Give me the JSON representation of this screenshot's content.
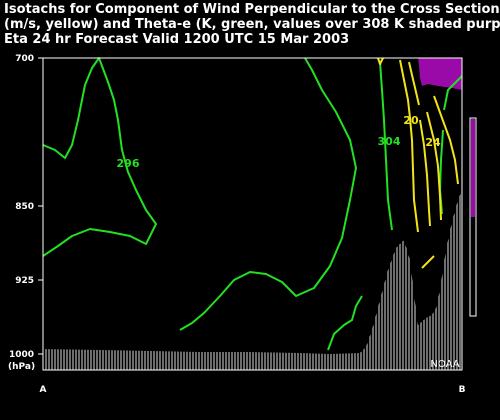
{
  "chart_data": {
    "type": "cross_section",
    "title_lines": [
      "Isotachs for Component of Wind Perpendicular to the Cross Section",
      "(m/s, yellow) and Theta-e (K, green, values over 308 K shaded purple)",
      "Eta 24 hr Forecast Valid 1200 UTC  15 Mar 2003"
    ],
    "y_axis": {
      "unit_label": "(hPa)",
      "ticks": [
        700,
        850,
        925,
        1000
      ],
      "ylim": [
        700,
        1000
      ],
      "inverted": true
    },
    "x_axis": {
      "endpoints": [
        "A",
        "B"
      ]
    },
    "watermark": "NOAA",
    "theta_e_labels": [
      "296",
      "304"
    ],
    "isotach_labels": [
      "20",
      "24"
    ],
    "colors": {
      "background": "#000000",
      "text": "#ffffff",
      "theta_e": "#22e022",
      "isotach": "#f2e418",
      "shading": "#9a0aa8",
      "terrain": "#ffffff"
    }
  }
}
